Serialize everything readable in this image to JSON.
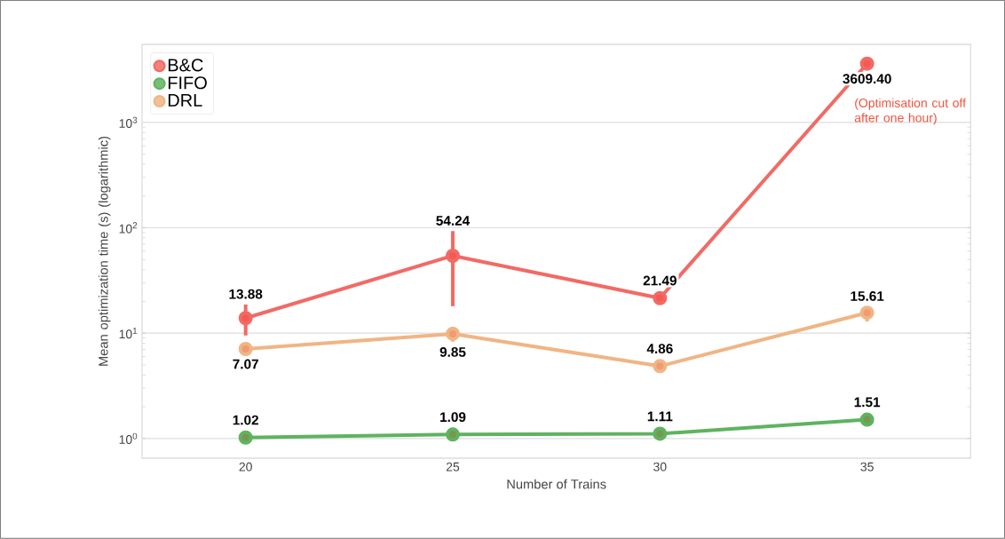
{
  "chart_data": {
    "type": "line",
    "xlabel": "Number of Trains",
    "ylabel": "Mean optimization time (s) (logarithmic)",
    "categories": [
      "20",
      "25",
      "30",
      "35"
    ],
    "series": [
      {
        "name": "B&C",
        "color": "#f26a64",
        "values": [
          13.88,
          54.24,
          21.49,
          3609.4
        ],
        "value_labels": [
          "13.88",
          "54.24",
          "21.49",
          "3609.40"
        ],
        "errors": [
          [
            9.5,
            18.7
          ],
          [
            18,
            93
          ],
          null,
          null
        ]
      },
      {
        "name": "FIFO",
        "color": "#5fb35f",
        "values": [
          1.02,
          1.09,
          1.11,
          1.51
        ],
        "value_labels": [
          "1.02",
          "1.09",
          "1.11",
          "1.51"
        ]
      },
      {
        "name": "DRL",
        "color": "#f0b584",
        "values": [
          7.07,
          9.85,
          4.86,
          15.61
        ],
        "value_labels": [
          "7.07",
          "9.85",
          "4.86",
          "15.61"
        ],
        "errors": [
          null,
          [
            8.3,
            11.5
          ],
          null,
          [
            12.9,
            17.9
          ]
        ]
      }
    ],
    "log": "y",
    "ylim": [
      0.65,
      5500
    ],
    "yticks": [
      {
        "value": 1,
        "label": "10$^{0}$"
      },
      {
        "value": 10,
        "label": "10$^{1}$"
      },
      {
        "value": 100,
        "label": "10$^{2}$"
      },
      {
        "value": 1000,
        "label": "10$^{3}$"
      }
    ],
    "grid": "y",
    "legend": "top left",
    "marker": "circle",
    "line_style": "solid",
    "annotations": [
      {
        "text": "(Optimisation cut off after one hour)",
        "x": "35",
        "y": 3609.4
      }
    ]
  }
}
